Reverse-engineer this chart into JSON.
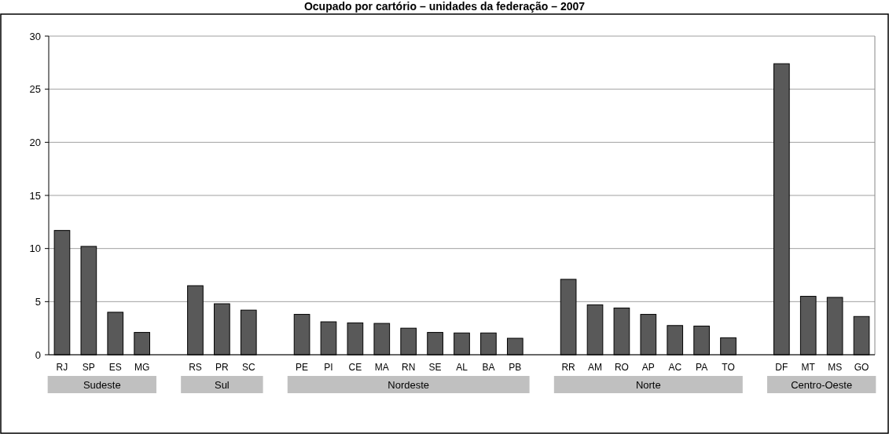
{
  "chart_data": {
    "type": "bar",
    "title": "Ocupado por cartório – unidades da federação – 2007",
    "categories": [
      "RJ",
      "SP",
      "ES",
      "MG",
      null,
      "RS",
      "PR",
      "SC",
      null,
      "PE",
      "PI",
      "CE",
      "MA",
      "RN",
      "SE",
      "AL",
      "BA",
      "PB",
      null,
      "RR",
      "AM",
      "RO",
      "AP",
      "AC",
      "PA",
      "TO",
      null,
      "DF",
      "MT",
      "MS",
      "GO"
    ],
    "values": [
      11.7,
      10.2,
      4.0,
      2.1,
      null,
      6.5,
      4.8,
      4.2,
      null,
      3.8,
      3.1,
      3.0,
      2.95,
      2.5,
      2.1,
      2.05,
      2.05,
      1.55,
      null,
      7.1,
      4.7,
      4.4,
      3.8,
      2.75,
      2.7,
      1.6,
      null,
      27.4,
      5.5,
      5.4,
      3.6
    ],
    "color": "#595959",
    "ylim": [
      0,
      30
    ],
    "yticks": [
      0,
      5,
      10,
      15,
      20,
      25,
      30
    ],
    "grid": "y",
    "annotations": [
      "Sudeste",
      "Sul",
      "Nordeste",
      "Norte",
      "Centro-Oeste"
    ]
  }
}
